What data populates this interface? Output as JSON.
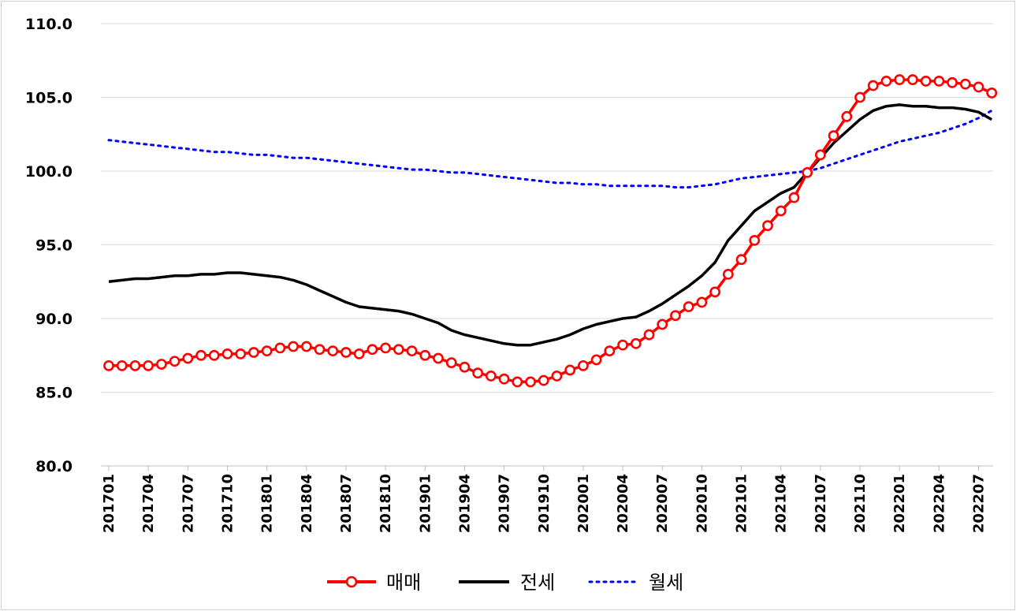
{
  "chart_data": {
    "type": "line",
    "ylim": [
      80,
      110
    ],
    "yticks": [
      "80.0",
      "85.0",
      "90.0",
      "95.0",
      "100.0",
      "105.0",
      "110.0"
    ],
    "x": [
      "201701",
      "201702",
      "201703",
      "201704",
      "201705",
      "201706",
      "201707",
      "201708",
      "201709",
      "201710",
      "201711",
      "201712",
      "201801",
      "201802",
      "201803",
      "201804",
      "201805",
      "201806",
      "201807",
      "201808",
      "201809",
      "201810",
      "201811",
      "201812",
      "201901",
      "201902",
      "201903",
      "201904",
      "201905",
      "201906",
      "201907",
      "201908",
      "201909",
      "201910",
      "201911",
      "201912",
      "202001",
      "202002",
      "202003",
      "202004",
      "202005",
      "202006",
      "202007",
      "202008",
      "202009",
      "202010",
      "202011",
      "202012",
      "202101",
      "202102",
      "202103",
      "202104",
      "202105",
      "202106",
      "202107",
      "202108",
      "202109",
      "202110",
      "202111",
      "202112",
      "202201",
      "202202",
      "202203",
      "202204",
      "202205",
      "202206",
      "202207",
      "202208"
    ],
    "xtick_labels": [
      "201701",
      "201704",
      "201707",
      "201710",
      "201801",
      "201804",
      "201807",
      "201810",
      "201901",
      "201904",
      "201907",
      "201910",
      "202001",
      "202004",
      "202007",
      "202010",
      "202101",
      "202104",
      "202107",
      "202110",
      "202201",
      "202204",
      "202207"
    ],
    "grid": true,
    "legend_position": "bottom",
    "series": [
      {
        "name": "매매",
        "color": "#ff0000",
        "style": "solid-circle-markers",
        "values": [
          86.8,
          86.8,
          86.8,
          86.8,
          86.9,
          87.1,
          87.3,
          87.5,
          87.5,
          87.6,
          87.6,
          87.7,
          87.8,
          88.0,
          88.1,
          88.1,
          87.9,
          87.8,
          87.7,
          87.6,
          87.9,
          88.0,
          87.9,
          87.8,
          87.5,
          87.3,
          87.0,
          86.7,
          86.3,
          86.1,
          85.9,
          85.7,
          85.7,
          85.8,
          86.1,
          86.5,
          86.8,
          87.2,
          87.8,
          88.2,
          88.3,
          88.9,
          89.6,
          90.2,
          90.8,
          91.1,
          91.8,
          93.0,
          94.0,
          95.3,
          96.3,
          97.3,
          98.2,
          99.9,
          101.1,
          102.4,
          103.7,
          105.0,
          105.8,
          106.1,
          106.2,
          106.2,
          106.1,
          106.1,
          106.0,
          105.9,
          105.7,
          105.3
        ]
      },
      {
        "name": "전세",
        "color": "#000000",
        "style": "solid",
        "values": [
          92.5,
          92.6,
          92.7,
          92.7,
          92.8,
          92.9,
          92.9,
          93.0,
          93.0,
          93.1,
          93.1,
          93.0,
          92.9,
          92.8,
          92.6,
          92.3,
          91.9,
          91.5,
          91.1,
          90.8,
          90.7,
          90.6,
          90.5,
          90.3,
          90.0,
          89.7,
          89.2,
          88.9,
          88.7,
          88.5,
          88.3,
          88.2,
          88.2,
          88.4,
          88.6,
          88.9,
          89.3,
          89.6,
          89.8,
          90.0,
          90.1,
          90.5,
          91.0,
          91.6,
          92.2,
          92.9,
          93.8,
          95.3,
          96.3,
          97.3,
          97.9,
          98.5,
          98.9,
          99.9,
          100.9,
          101.9,
          102.7,
          103.5,
          104.1,
          104.4,
          104.5,
          104.4,
          104.4,
          104.3,
          104.3,
          104.2,
          104.0,
          103.5
        ]
      },
      {
        "name": "월세",
        "color": "#0000ff",
        "style": "dotted",
        "values": [
          102.1,
          102.0,
          101.9,
          101.8,
          101.7,
          101.6,
          101.5,
          101.4,
          101.3,
          101.3,
          101.2,
          101.1,
          101.1,
          101.0,
          100.9,
          100.9,
          100.8,
          100.7,
          100.6,
          100.5,
          100.4,
          100.3,
          100.2,
          100.1,
          100.1,
          100.0,
          99.9,
          99.9,
          99.8,
          99.7,
          99.6,
          99.5,
          99.4,
          99.3,
          99.2,
          99.2,
          99.1,
          99.1,
          99.0,
          99.0,
          99.0,
          99.0,
          99.0,
          98.9,
          98.9,
          99.0,
          99.1,
          99.3,
          99.5,
          99.6,
          99.7,
          99.8,
          99.9,
          100.0,
          100.2,
          100.5,
          100.8,
          101.1,
          101.4,
          101.7,
          102.0,
          102.2,
          102.4,
          102.6,
          102.9,
          103.2,
          103.6,
          104.1
        ]
      }
    ]
  }
}
